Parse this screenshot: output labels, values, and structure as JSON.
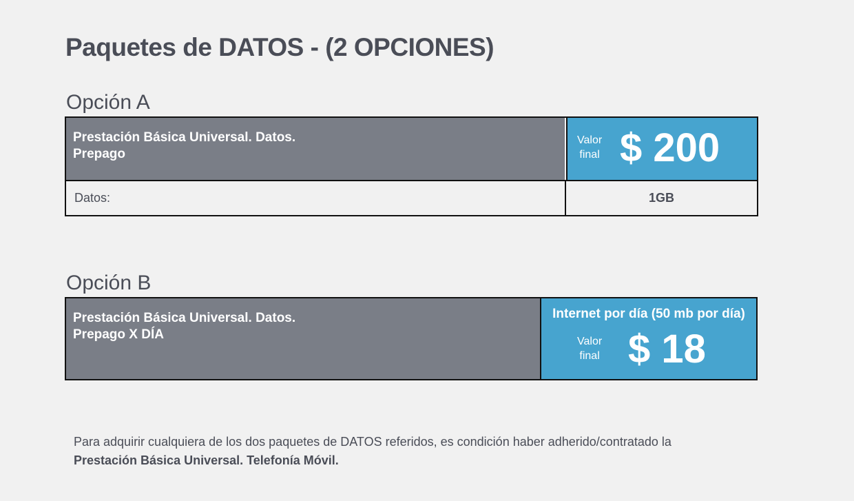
{
  "title": "Paquetes de DATOS - (2 OPCIONES)",
  "option_a": {
    "heading": "Opción A",
    "name_line1": "Prestación Básica Universal. Datos.",
    "name_line2": "Prepago",
    "valor_line1": "Valor",
    "valor_line2": "final",
    "price": "$ 200",
    "row_label": "Datos:",
    "row_value": "1GB"
  },
  "option_b": {
    "heading": "Opción B",
    "name_line1": "Prestación Básica Universal. Datos.",
    "name_line2": "Prepago X DÍA",
    "subtitle": "Internet por día (50 mb por día)",
    "valor_line1": "Valor",
    "valor_line2": "final",
    "price": "$ 18"
  },
  "footer": {
    "line1": "Para adquirir cualquiera de los dos paquetes de DATOS referidos, es condición haber adherido/contratado la",
    "line2": "Prestación Básica Universal. Telefonía Móvil."
  },
  "colors": {
    "gray": "#7a7e87",
    "blue": "#47a4cf",
    "background": "#f1f1f1"
  }
}
